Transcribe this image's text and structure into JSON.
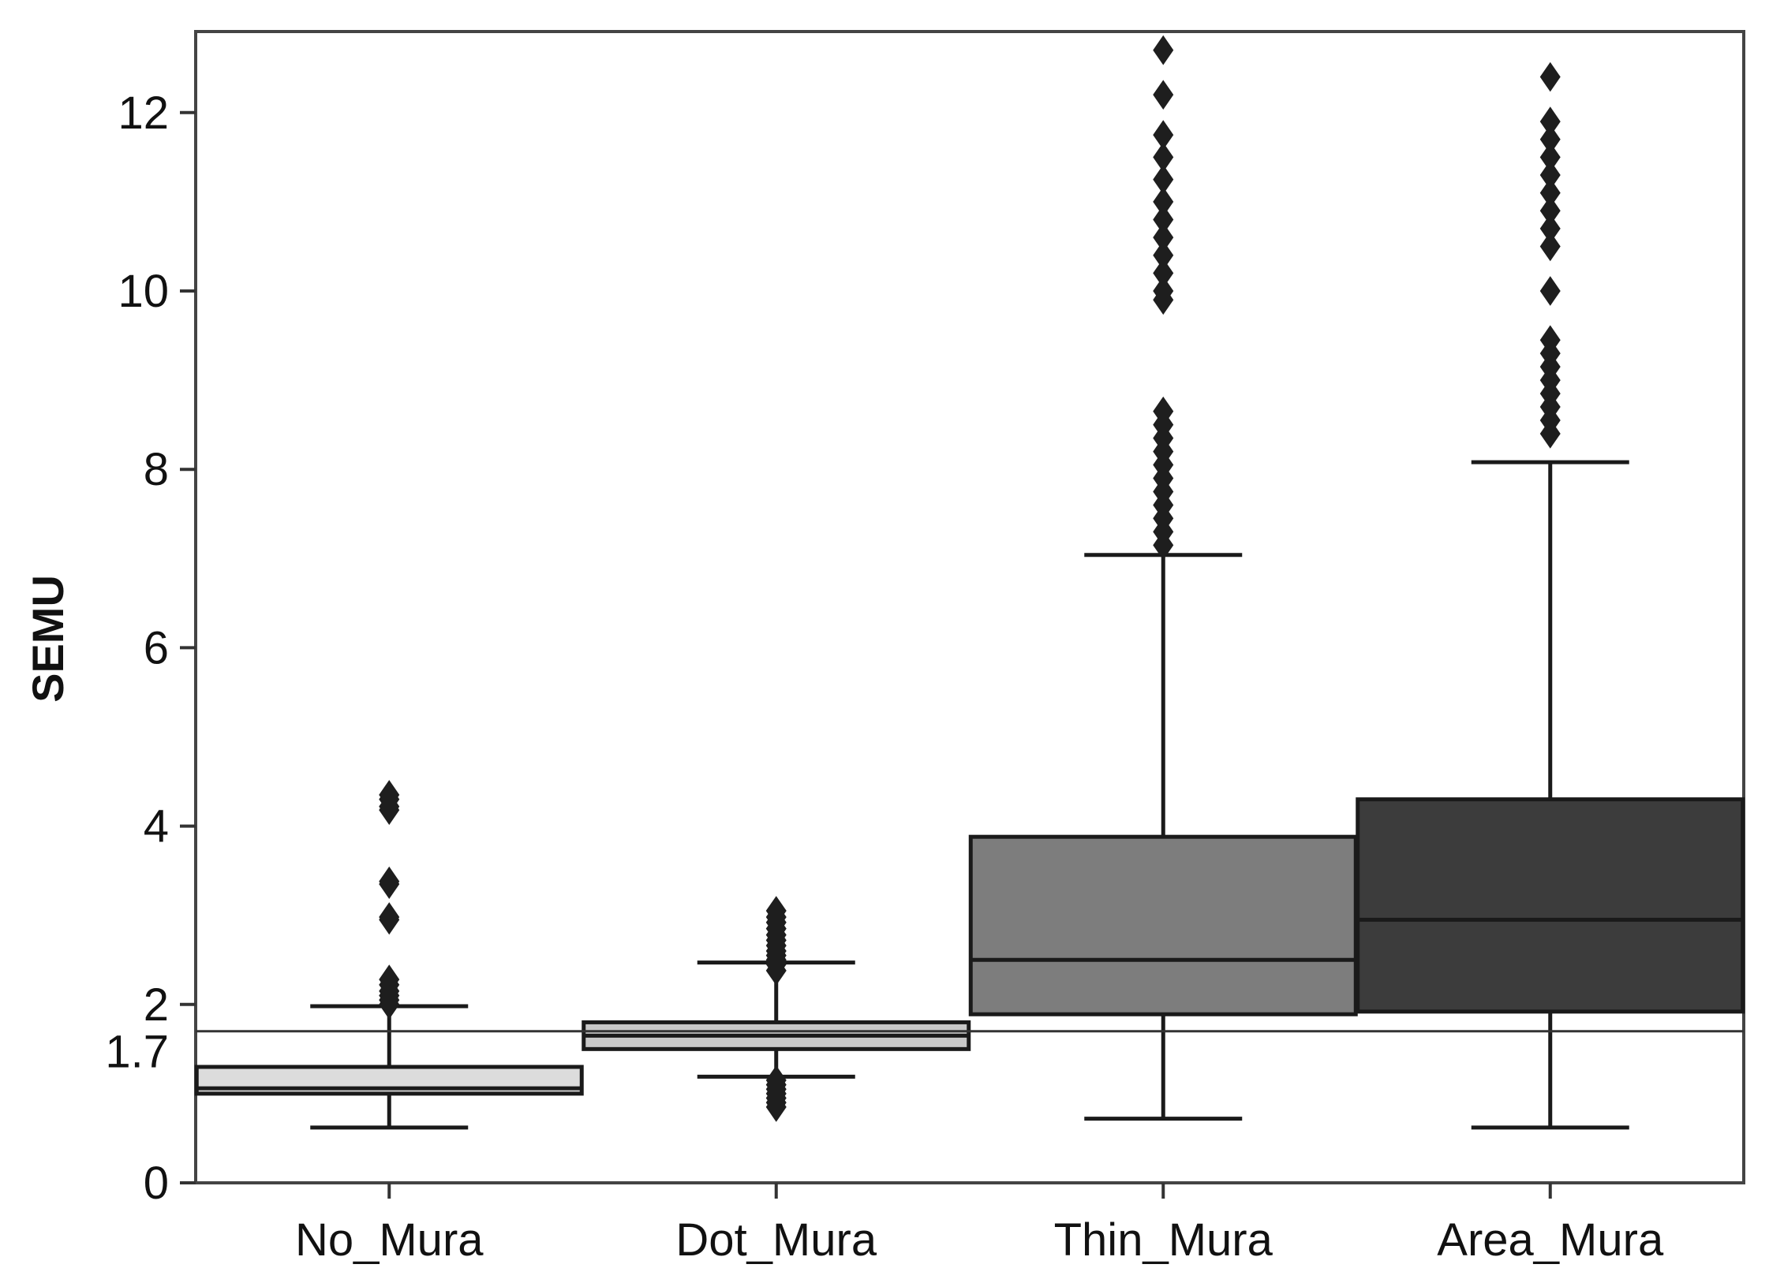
{
  "chart_data": {
    "type": "box",
    "title": "",
    "xlabel": "",
    "ylabel": "SEMU",
    "ylim": [
      0,
      13
    ],
    "yticks": [
      0,
      2,
      4,
      6,
      8,
      10,
      12
    ],
    "ytick_labels": [
      "0",
      "2",
      "4",
      "6",
      "8",
      "10",
      "12"
    ],
    "reference_line": {
      "value": 1.7,
      "label": "1.7"
    },
    "categories": [
      "No_Mura",
      "Dot_Mura",
      "Thin_Mura",
      "Area_Mura"
    ],
    "boxes": [
      {
        "name": "No_Mura",
        "fill": "#dcdcdc",
        "whisker_low": 0.62,
        "q1": 1.0,
        "median": 1.06,
        "q3": 1.3,
        "whisker_high": 1.98,
        "outliers": [
          4.35,
          4.3,
          4.22,
          4.18,
          3.38,
          3.35,
          2.98,
          2.95,
          2.28,
          2.22,
          2.15,
          2.1,
          2.05,
          2.0
        ]
      },
      {
        "name": "Dot_Mura",
        "fill": "#c8c8c8",
        "whisker_low": 1.19,
        "q1": 1.5,
        "median": 1.65,
        "q3": 1.8,
        "whisker_high": 2.47,
        "outliers": [
          3.05,
          2.98,
          2.92,
          2.85,
          2.78,
          2.72,
          2.66,
          2.6,
          2.55,
          2.5,
          2.45,
          2.38,
          1.15,
          1.1,
          1.05,
          1.0,
          0.95,
          0.9,
          0.85
        ]
      },
      {
        "name": "Thin_Mura",
        "fill": "#7d7d7d",
        "whisker_low": 0.72,
        "q1": 1.89,
        "median": 2.5,
        "q3": 3.88,
        "whisker_high": 7.04,
        "outliers": [
          12.7,
          12.2,
          11.75,
          11.5,
          11.25,
          11.0,
          10.8,
          10.6,
          10.4,
          10.2,
          10.0,
          9.9,
          8.65,
          8.5,
          8.35,
          8.2,
          8.05,
          7.9,
          7.75,
          7.6,
          7.45,
          7.3,
          7.15
        ]
      },
      {
        "name": "Area_Mura",
        "fill": "#3c3c3c",
        "whisker_low": 0.62,
        "q1": 1.92,
        "median": 2.95,
        "q3": 4.3,
        "whisker_high": 8.08,
        "outliers": [
          12.4,
          11.9,
          11.7,
          11.5,
          11.3,
          11.1,
          10.9,
          10.7,
          10.5,
          10.0,
          9.45,
          9.3,
          9.15,
          9.0,
          8.85,
          8.7,
          8.55,
          8.4
        ]
      }
    ]
  }
}
